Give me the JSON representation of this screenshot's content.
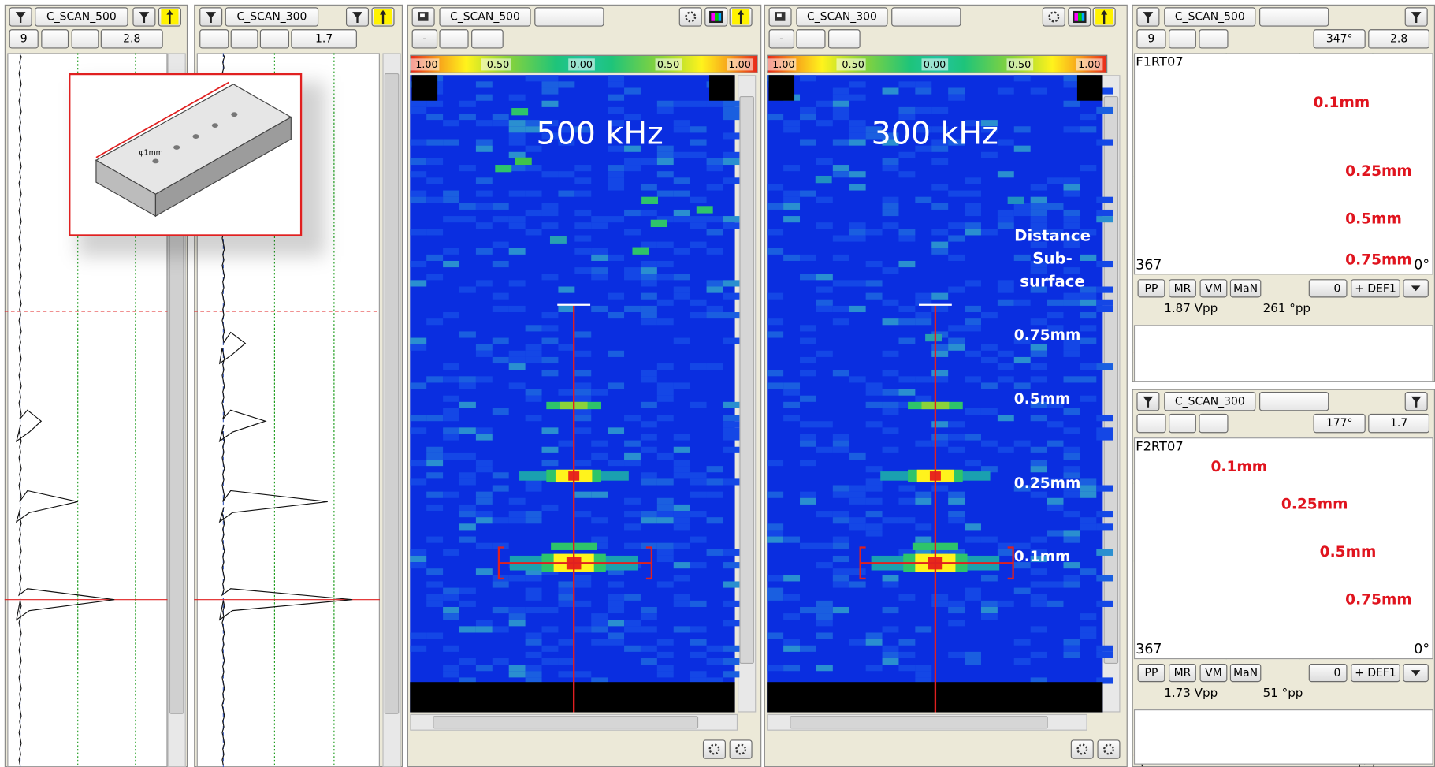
{
  "strip_panels": [
    {
      "channel": "C_SCAN_500",
      "fields": [
        "9",
        "2.8"
      ]
    },
    {
      "channel": "C_SCAN_300",
      "fields": [
        "1.7"
      ]
    }
  ],
  "inset": {
    "label": "φ1mm"
  },
  "cscan_panels": [
    {
      "channel": "C_SCAN_500",
      "button": "-",
      "colorbar": [
        "-1.00",
        "-0.50",
        "0.00",
        "0.50",
        "1.00"
      ],
      "frequency": "500 kHz"
    },
    {
      "channel": "C_SCAN_300",
      "button": "-",
      "colorbar": [
        "-1.00",
        "-0.50",
        "0.00",
        "0.50",
        "1.00"
      ],
      "frequency": "300 kHz",
      "annotation": [
        "Distance",
        "Sub-",
        "surface"
      ],
      "depth_labels": [
        "0.75mm",
        "0.5mm",
        "0.25mm",
        "0.1mm"
      ]
    }
  ],
  "impedance_panels": [
    {
      "channel": "C_SCAN_500",
      "fields": [
        "9",
        "347°",
        "2.8"
      ],
      "frequency_label": "F1RT07",
      "depth_labels": [
        "0.1mm",
        "0.25mm",
        "0.5mm",
        "0.75mm"
      ],
      "scale": "367",
      "angle": "0°",
      "buttons": [
        "PP",
        "MR",
        "VM",
        "MaN",
        "0",
        "+ DEF1"
      ],
      "amplitude": "1.87 Vpp",
      "phase": "261 °pp"
    },
    {
      "channel": "C_SCAN_300",
      "fields": [
        "177°",
        "1.7"
      ],
      "frequency_label": "F2RT07",
      "depth_labels": [
        "0.1mm",
        "0.25mm",
        "0.5mm",
        "0.75mm"
      ],
      "scale": "367",
      "angle": "0°",
      "buttons": [
        "PP",
        "MR",
        "VM",
        "MaN",
        "0",
        "+ DEF1"
      ],
      "amplitude": "1.73 Vpp",
      "phase": "51 °pp"
    }
  ]
}
